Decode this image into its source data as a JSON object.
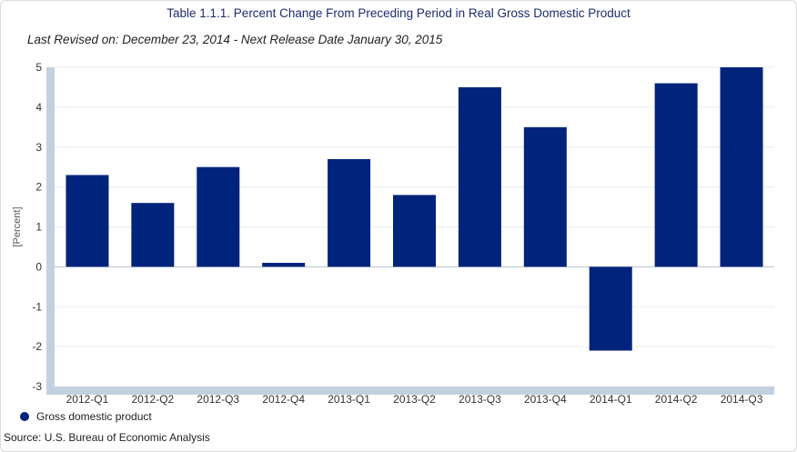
{
  "chart_data": {
    "type": "bar",
    "title": "Table 1.1.1. Percent Change From Preceding Period in Real Gross Domestic Product",
    "subtitle": "Last Revised on: December 23, 2014 - Next Release Date January 30, 2015",
    "ylabel": "[Percent]",
    "xlabel": "",
    "ylim": [
      -3,
      5
    ],
    "yticks": [
      5,
      4,
      3,
      2,
      1,
      0,
      -1,
      -2,
      -3
    ],
    "grid": true,
    "legend_position": "bottom-left",
    "categories": [
      "2012-Q1",
      "2012-Q2",
      "2012-Q3",
      "2012-Q4",
      "2013-Q1",
      "2013-Q2",
      "2013-Q3",
      "2013-Q4",
      "2014-Q1",
      "2014-Q2",
      "2014-Q3"
    ],
    "series": [
      {
        "name": "Gross domestic product",
        "color": "#00237b",
        "values": [
          2.3,
          1.6,
          2.5,
          0.1,
          2.7,
          1.8,
          4.5,
          3.5,
          -2.1,
          4.6,
          5.0
        ]
      }
    ],
    "source": "Source: U.S. Bureau of Economic Analysis",
    "axis_color": "#c3d0df"
  }
}
